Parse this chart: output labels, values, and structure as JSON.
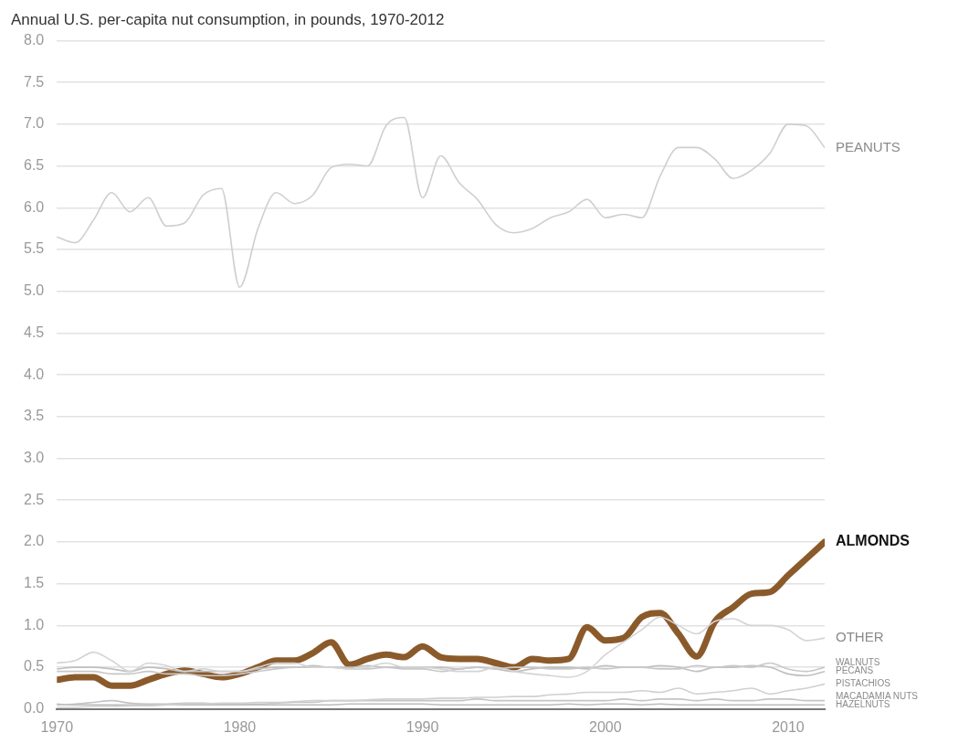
{
  "chart_data": {
    "type": "line",
    "title": "Annual U.S. per-capita nut consumption, in pounds, 1970-2012",
    "x": [
      1970,
      1971,
      1972,
      1973,
      1974,
      1975,
      1976,
      1977,
      1978,
      1979,
      1980,
      1981,
      1982,
      1983,
      1984,
      1985,
      1986,
      1987,
      1988,
      1989,
      1990,
      1991,
      1992,
      1993,
      1994,
      1995,
      1996,
      1997,
      1998,
      1999,
      2000,
      2001,
      2002,
      2003,
      2004,
      2005,
      2006,
      2007,
      2008,
      2009,
      2010,
      2011,
      2012
    ],
    "series": [
      {
        "name": "PEANUTS",
        "color": "#cfcfcf",
        "values": [
          5.65,
          5.58,
          5.85,
          6.18,
          5.95,
          6.12,
          5.78,
          5.82,
          6.15,
          6.23,
          5.05,
          5.75,
          6.18,
          6.05,
          6.15,
          6.48,
          6.52,
          6.5,
          6.98,
          7.08,
          6.12,
          6.62,
          6.3,
          6.1,
          5.8,
          5.7,
          5.75,
          5.88,
          5.95,
          6.1,
          5.88,
          5.92,
          5.88,
          6.38,
          6.72,
          6.72,
          6.58,
          6.35,
          6.45,
          6.65,
          7.0,
          6.98,
          6.72
        ]
      },
      {
        "name": "OTHER",
        "color": "#d4d4d4",
        "values": [
          0.55,
          0.58,
          0.68,
          0.58,
          0.45,
          0.55,
          0.52,
          0.45,
          0.48,
          0.45,
          0.45,
          0.5,
          0.55,
          0.55,
          0.5,
          0.5,
          0.48,
          0.5,
          0.55,
          0.5,
          0.5,
          0.48,
          0.45,
          0.45,
          0.5,
          0.45,
          0.42,
          0.4,
          0.38,
          0.45,
          0.65,
          0.8,
          0.95,
          1.1,
          1.0,
          0.9,
          1.05,
          1.08,
          1.0,
          1.0,
          0.95,
          0.82,
          0.85
        ]
      },
      {
        "name": "WALNUTS",
        "color": "#c8c8c8",
        "values": [
          0.45,
          0.45,
          0.45,
          0.42,
          0.42,
          0.45,
          0.42,
          0.42,
          0.4,
          0.4,
          0.42,
          0.45,
          0.48,
          0.5,
          0.5,
          0.5,
          0.48,
          0.48,
          0.5,
          0.48,
          0.48,
          0.45,
          0.48,
          0.5,
          0.48,
          0.5,
          0.5,
          0.48,
          0.48,
          0.5,
          0.48,
          0.5,
          0.5,
          0.48,
          0.48,
          0.52,
          0.5,
          0.52,
          0.5,
          0.55,
          0.48,
          0.45,
          0.5
        ]
      },
      {
        "name": "PECANS",
        "color": "#c0c0c0",
        "values": [
          0.48,
          0.5,
          0.5,
          0.48,
          0.45,
          0.5,
          0.48,
          0.45,
          0.45,
          0.45,
          0.45,
          0.48,
          0.5,
          0.5,
          0.52,
          0.5,
          0.5,
          0.52,
          0.5,
          0.5,
          0.5,
          0.5,
          0.48,
          0.5,
          0.48,
          0.45,
          0.48,
          0.5,
          0.5,
          0.48,
          0.52,
          0.5,
          0.5,
          0.52,
          0.5,
          0.45,
          0.5,
          0.5,
          0.52,
          0.5,
          0.42,
          0.4,
          0.45
        ]
      },
      {
        "name": "PISTACHIOS",
        "color": "#d0d0d0",
        "values": [
          0.02,
          0.02,
          0.03,
          0.03,
          0.04,
          0.04,
          0.05,
          0.06,
          0.06,
          0.07,
          0.07,
          0.08,
          0.08,
          0.09,
          0.1,
          0.1,
          0.1,
          0.11,
          0.12,
          0.12,
          0.12,
          0.13,
          0.13,
          0.14,
          0.14,
          0.15,
          0.15,
          0.17,
          0.18,
          0.2,
          0.2,
          0.2,
          0.22,
          0.2,
          0.25,
          0.18,
          0.2,
          0.22,
          0.25,
          0.18,
          0.22,
          0.25,
          0.3
        ]
      },
      {
        "name": "MACADAMIA NUTS",
        "color": "#c4c4c4",
        "values": [
          0.05,
          0.06,
          0.08,
          0.1,
          0.07,
          0.06,
          0.06,
          0.07,
          0.07,
          0.06,
          0.06,
          0.06,
          0.07,
          0.08,
          0.08,
          0.1,
          0.1,
          0.1,
          0.1,
          0.1,
          0.1,
          0.1,
          0.1,
          0.12,
          0.1,
          0.1,
          0.1,
          0.1,
          0.1,
          0.1,
          0.1,
          0.12,
          0.1,
          0.12,
          0.12,
          0.1,
          0.12,
          0.1,
          0.1,
          0.12,
          0.12,
          0.1,
          0.1
        ]
      },
      {
        "name": "HAZELNUTS",
        "color": "#bcbcbc",
        "values": [
          0.06,
          0.05,
          0.05,
          0.05,
          0.05,
          0.05,
          0.05,
          0.05,
          0.05,
          0.05,
          0.05,
          0.05,
          0.05,
          0.05,
          0.05,
          0.05,
          0.06,
          0.06,
          0.06,
          0.06,
          0.06,
          0.05,
          0.05,
          0.05,
          0.05,
          0.05,
          0.05,
          0.05,
          0.06,
          0.05,
          0.06,
          0.06,
          0.05,
          0.06,
          0.05,
          0.05,
          0.05,
          0.05,
          0.05,
          0.05,
          0.05,
          0.05,
          0.05
        ]
      },
      {
        "name": "ALMONDS",
        "color": "#8b5a2b",
        "values": [
          0.35,
          0.38,
          0.38,
          0.28,
          0.28,
          0.35,
          0.42,
          0.46,
          0.42,
          0.38,
          0.42,
          0.5,
          0.58,
          0.58,
          0.67,
          0.8,
          0.53,
          0.6,
          0.65,
          0.62,
          0.75,
          0.62,
          0.6,
          0.6,
          0.55,
          0.5,
          0.6,
          0.58,
          0.6,
          0.98,
          0.82,
          0.85,
          1.1,
          1.15,
          0.9,
          0.63,
          1.05,
          1.22,
          1.38,
          1.4,
          1.6,
          1.8,
          2.0
        ]
      }
    ],
    "xlim": [
      1970,
      2012
    ],
    "xticks": [
      1970,
      1980,
      1990,
      2000,
      2010
    ],
    "ylim": [
      0,
      8
    ],
    "yticks": [
      {
        "value": 0,
        "label": "0.0"
      },
      {
        "value": 0.5,
        "label": "0.5"
      },
      {
        "value": 1,
        "label": "1.0"
      },
      {
        "value": 1.5,
        "label": "1.5"
      },
      {
        "value": 2,
        "label": "2.0"
      },
      {
        "value": 2.5,
        "label": "2.5"
      },
      {
        "value": 3,
        "label": "3.0"
      },
      {
        "value": 3.5,
        "label": "3.5"
      },
      {
        "value": 4,
        "label": "4.0"
      },
      {
        "value": 4.5,
        "label": "4.5"
      },
      {
        "value": 5,
        "label": "5.0"
      },
      {
        "value": 5.5,
        "label": "5.5"
      },
      {
        "value": 6,
        "label": "6.0"
      },
      {
        "value": 6.5,
        "label": "6.5"
      },
      {
        "value": 7,
        "label": "7.0"
      },
      {
        "value": 7.5,
        "label": "7.5"
      },
      {
        "value": 8,
        "label": "8.0"
      }
    ],
    "grid": "y",
    "legend": false,
    "marker": "none",
    "line_style": "solid"
  }
}
